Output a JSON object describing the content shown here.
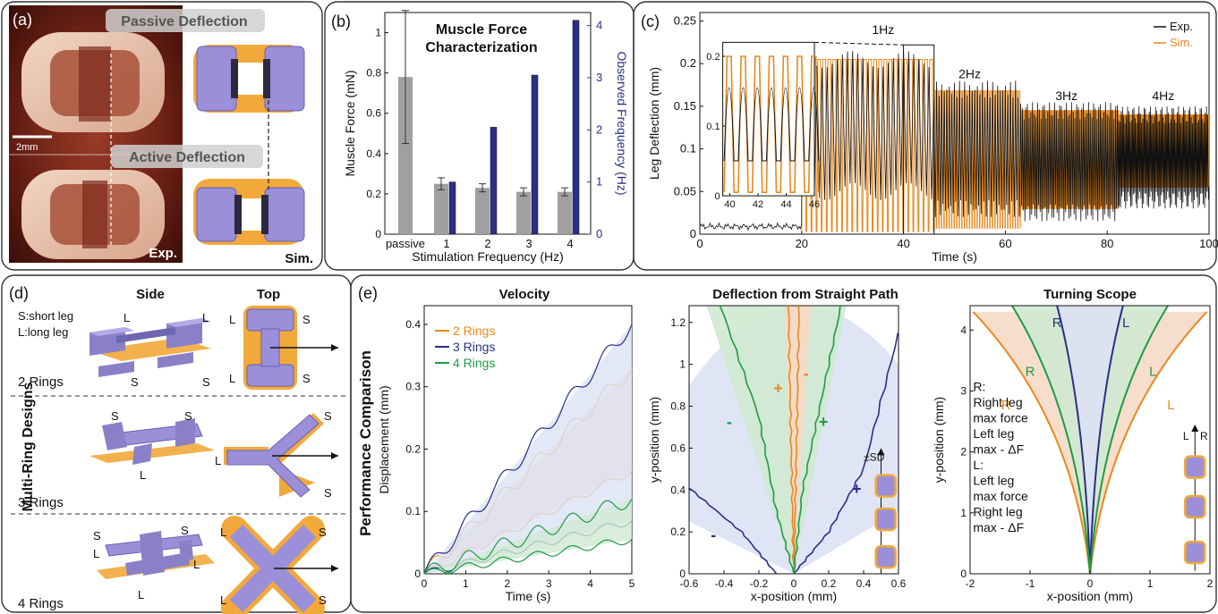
{
  "colors": {
    "orange": "#E8891E",
    "navy": "#2B2F86",
    "green": "#1E9B48",
    "gray": "#A0A0A0",
    "purple": "#9A8FD8",
    "black": "#111111",
    "orange_fill": "#F6D9C6",
    "blue_fill": "#DCE2F4",
    "green_fill": "#CFE9D2"
  },
  "panel_a": {
    "letter": "(a)",
    "passive_label": "Passive Deflection",
    "active_label": "Active Deflection",
    "scale_label": "2mm",
    "exp_label": "Exp.",
    "sim_label": "Sim."
  },
  "panel_b": {
    "letter": "(b)",
    "title_line1": "Muscle Force",
    "title_line2": "Characterization"
  },
  "panel_c": {
    "letter": "(c)",
    "freq_labels": [
      "1Hz",
      "2Hz",
      "3Hz",
      "4Hz"
    ]
  },
  "panel_d": {
    "letter": "(d)",
    "side_label": "Side",
    "top_label": "Top",
    "legend_line1": "S:short leg",
    "legend_line2": "L:long leg",
    "rows_title": "Multi-Ring Designs",
    "rings": [
      "2 Rings",
      "3 Rings",
      "4 Rings"
    ],
    "S": "S",
    "L": "L"
  },
  "panel_e": {
    "letter": "(e)",
    "ylabel_group": "Performance Comparison",
    "sub_titles": [
      "Velocity",
      "Deflection from Straight Path",
      "Turning Scope"
    ],
    "sd_label": "±SD",
    "plus": "+",
    "minus": "-",
    "R": "R",
    "L": "L",
    "turn_note": [
      "R:",
      "Right leg",
      "max force",
      "Left leg",
      "max - ΔF",
      "L:",
      "Left leg",
      "max force",
      "Right leg",
      "max - ΔF"
    ]
  },
  "chart_data": [
    {
      "id": "b",
      "type": "bar",
      "title": "Muscle Force Characterization",
      "xlabel": "Stimulation Frequency (Hz)",
      "ylabel": "Muscle Force (mN)",
      "y2label": "Observed Frequency (Hz)",
      "categories": [
        "passive",
        "1",
        "2",
        "3",
        "4"
      ],
      "ylim": [
        0,
        1.1
      ],
      "y2lim": [
        0,
        4.25
      ],
      "yticks": [
        "0",
        "0.2",
        "0.4",
        "0.6",
        "0.8",
        "1"
      ],
      "y2ticks": [
        "0",
        "1",
        "2",
        "3",
        "4"
      ],
      "series": [
        {
          "name": "Muscle Force (mN)",
          "values": [
            0.78,
            0.25,
            0.23,
            0.21,
            0.21
          ],
          "error": [
            0.33,
            0.03,
            0.02,
            0.02,
            0.02
          ]
        },
        {
          "name": "Observed Frequency (Hz)",
          "values": [
            null,
            1.0,
            2.05,
            3.05,
            4.1
          ]
        }
      ]
    },
    {
      "id": "c",
      "type": "line",
      "xlabel": "Time (s)",
      "ylabel": "Leg Deflection (mm)",
      "xlim": [
        0,
        100
      ],
      "ylim": [
        0,
        0.26
      ],
      "xticks": [
        "0",
        "20",
        "40",
        "60",
        "80",
        "100"
      ],
      "yticks": [
        "0",
        "0.05",
        "0.1",
        "0.15",
        "0.2",
        "0.25"
      ],
      "legend": [
        "Exp.",
        "Sim."
      ],
      "series": [
        {
          "name": "Exp.",
          "segments": [
            {
              "hz": 0,
              "t": [
                0,
                20
              ],
              "low": 0.005,
              "high": 0.013
            },
            {
              "hz": 1,
              "t": [
                20,
                46
              ],
              "low": 0.05,
              "high": 0.205
            },
            {
              "hz": 2,
              "t": [
                46,
                63
              ],
              "low": 0.03,
              "high": 0.17
            },
            {
              "hz": 3,
              "t": [
                63,
                82
              ],
              "low": 0.025,
              "high": 0.145
            },
            {
              "hz": 4,
              "t": [
                82,
                100
              ],
              "low": 0.04,
              "high": 0.14
            }
          ]
        },
        {
          "name": "Sim.",
          "segments": [
            {
              "hz": 1,
              "t": [
                20,
                46
              ],
              "low": 0.003,
              "high": 0.205
            },
            {
              "hz": 2,
              "t": [
                46,
                63
              ],
              "low": 0.007,
              "high": 0.168
            },
            {
              "hz": 3,
              "t": [
                63,
                82
              ],
              "low": 0.03,
              "high": 0.145
            },
            {
              "hz": 4,
              "t": [
                82,
                100
              ],
              "low": 0.055,
              "high": 0.14
            }
          ]
        }
      ],
      "inset": {
        "xlim": [
          39.5,
          46
        ],
        "ylim": [
          0,
          0.22
        ],
        "xticks": [
          "40",
          "42",
          "44",
          "46"
        ],
        "yticks": [
          "0",
          "0.1",
          "0.2"
        ]
      }
    },
    {
      "id": "e-velocity",
      "type": "line",
      "title": "Velocity",
      "xlabel": "Time (s)",
      "ylabel": "Displacement (mm)",
      "xlim": [
        0,
        5
      ],
      "ylim": [
        0,
        0.43
      ],
      "xticks": [
        "0",
        "1",
        "2",
        "3",
        "4",
        "5"
      ],
      "yticks": [
        "0",
        "0.1",
        "0.2",
        "0.3",
        "0.4"
      ],
      "series": [
        {
          "name": "2 Rings",
          "upper_end": 0.33,
          "lower_end": 0.165
        },
        {
          "name": "3 Rings",
          "upper_end": 0.4,
          "lower_end": 0.085
        },
        {
          "name": "4 Rings",
          "upper_end": 0.12,
          "lower_end": 0.055
        }
      ]
    },
    {
      "id": "e-deflection",
      "type": "line",
      "title": "Deflection from Straight Path",
      "xlabel": "x-position (mm)",
      "ylabel": "y-position (mm)",
      "xlim": [
        -0.6,
        0.6
      ],
      "ylim": [
        0,
        1.28
      ],
      "xticks": [
        "-0.6",
        "-0.4",
        "-0.2",
        "0",
        "0.2",
        "0.4",
        "0.6"
      ],
      "yticks": [
        "0",
        "0.2",
        "0.4",
        "0.6",
        "0.8",
        "1",
        "1.2"
      ],
      "series": [
        {
          "name": "2 Rings",
          "minus": [
            [
              0.0,
              0.0
            ],
            [
              -0.01,
              0.4
            ],
            [
              -0.02,
              0.8
            ],
            [
              -0.03,
              1.28
            ]
          ],
          "plus": [
            [
              0.0,
              0.0
            ],
            [
              0.01,
              0.4
            ],
            [
              0.02,
              0.8
            ],
            [
              0.03,
              1.28
            ]
          ]
        },
        {
          "name": "3 Rings",
          "minus": [
            [
              -0.1,
              0.0
            ],
            [
              -0.3,
              0.2
            ],
            [
              -0.6,
              0.41
            ]
          ],
          "plus": [
            [
              0.0,
              0.0
            ],
            [
              0.2,
              0.2
            ],
            [
              0.4,
              0.5
            ],
            [
              0.6,
              1.15
            ]
          ]
        },
        {
          "name": "4 Rings",
          "minus": [
            [
              0.0,
              0.0
            ],
            [
              -0.1,
              0.3
            ],
            [
              -0.2,
              0.75
            ],
            [
              -0.42,
              1.28
            ]
          ],
          "plus": [
            [
              0.0,
              0.0
            ],
            [
              0.05,
              0.4
            ],
            [
              0.15,
              0.8
            ],
            [
              0.27,
              1.28
            ]
          ]
        }
      ]
    },
    {
      "id": "e-turning",
      "type": "line",
      "title": "Turning Scope",
      "xlabel": "x-position (mm)",
      "ylabel": "y-position (mm)",
      "xlim": [
        -2,
        2
      ],
      "ylim": [
        0,
        4.4
      ],
      "xticks": [
        "-2",
        "-1",
        "0",
        "1",
        "2"
      ],
      "yticks": [
        "0",
        "1",
        "2",
        "3",
        "4"
      ],
      "series": [
        {
          "name": "2 Rings",
          "end_x": 1.95,
          "end_y": 4.3
        },
        {
          "name": "3 Rings",
          "end_x": 0.55,
          "end_y": 4.4
        },
        {
          "name": "4 Rings",
          "end_x": 1.3,
          "end_y": 4.4
        }
      ]
    }
  ]
}
